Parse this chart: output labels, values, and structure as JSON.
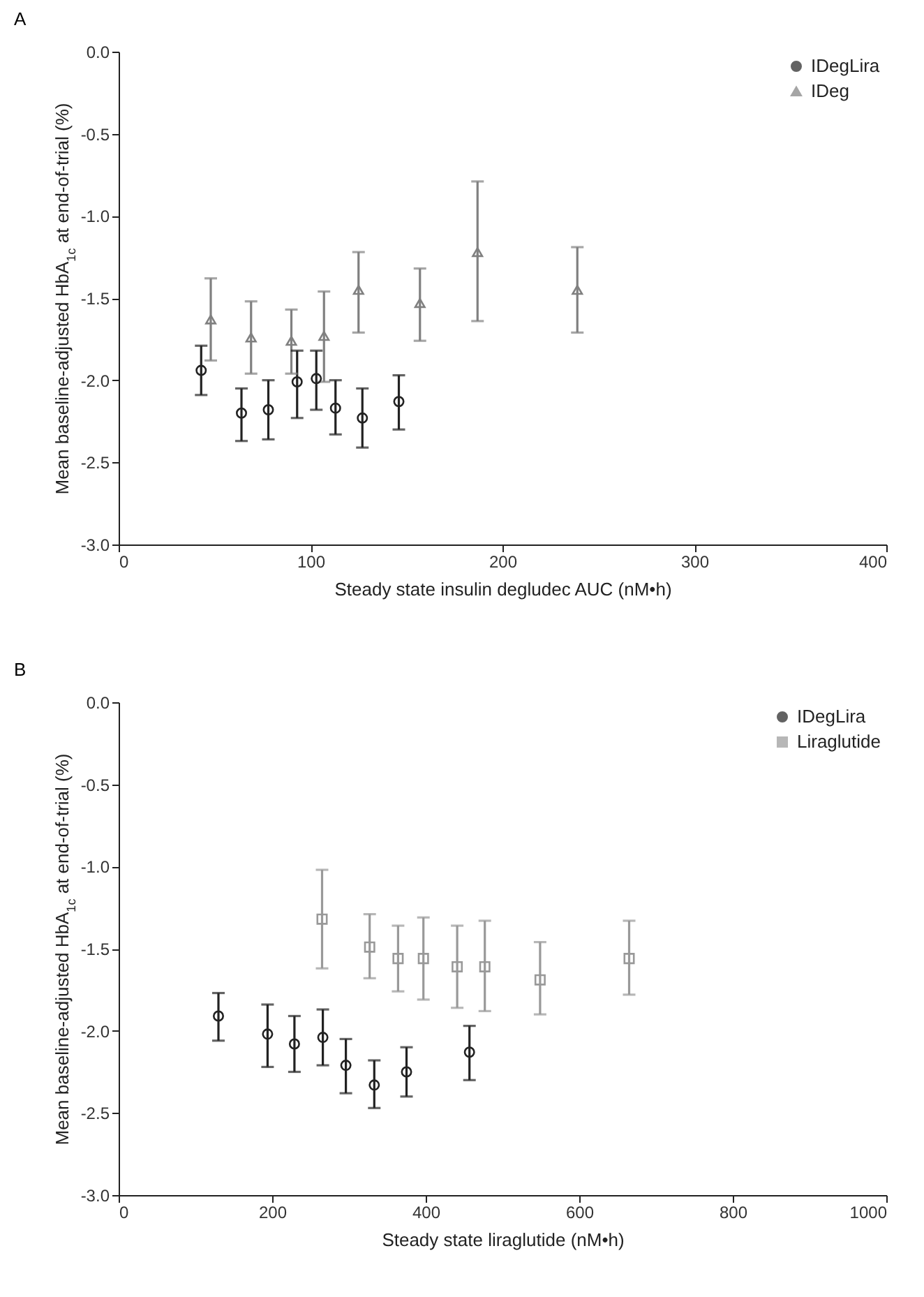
{
  "chart_data": [
    {
      "type": "scatter",
      "title": "A",
      "xlabel": "Steady state insulin degludec AUC (nM•h)",
      "ylabel": "Mean baseline-adjusted HbA$_{1c}$ at end-of-trial (%)",
      "xlim": [
        0,
        400
      ],
      "xticks": [
        0,
        100,
        200,
        300,
        400
      ],
      "ylim": [
        -3,
        0
      ],
      "yticks": [
        {
          "value": -3,
          "label": "-3.0"
        },
        {
          "value": -2.5,
          "label": "-2.5"
        },
        {
          "value": -2,
          "label": "-2.0"
        },
        {
          "value": -1.5,
          "label": "-1.5"
        },
        {
          "value": -1,
          "label": "-1.0"
        },
        {
          "value": -0.5,
          "label": "-0.5"
        },
        {
          "value": 0,
          "label": "0.0"
        }
      ],
      "legend": "top right",
      "series": [
        {
          "name": "IDegLira",
          "color": "#222222",
          "marker": "circle",
          "x": [
            43,
            64,
            78,
            93,
            103,
            113,
            127,
            146
          ],
          "values": [
            -1.94,
            -2.2,
            -2.18,
            -2.01,
            -1.99,
            -2.17,
            -2.23,
            -2.13
          ],
          "errors": [
            [
              -2.09,
              -1.79
            ],
            [
              -2.37,
              -2.05
            ],
            [
              -2.36,
              -2.0
            ],
            [
              -2.23,
              -1.82
            ],
            [
              -2.18,
              -1.82
            ],
            [
              -2.33,
              -2.0
            ],
            [
              -2.41,
              -2.05
            ],
            [
              -2.3,
              -1.97
            ]
          ]
        },
        {
          "name": "IDeg",
          "color": "#808080",
          "marker": "triangle",
          "x": [
            48,
            69,
            90,
            107,
            125,
            157,
            187,
            239
          ],
          "values": [
            -1.63,
            -1.74,
            -1.76,
            -1.73,
            -1.45,
            -1.53,
            -1.22,
            -1.45
          ],
          "errors": [
            [
              -1.88,
              -1.38
            ],
            [
              -1.96,
              -1.52
            ],
            [
              -1.96,
              -1.57
            ],
            [
              -2.01,
              -1.46
            ],
            [
              -1.71,
              -1.22
            ],
            [
              -1.76,
              -1.32
            ],
            [
              -1.64,
              -0.79
            ],
            [
              -1.71,
              -1.19
            ]
          ]
        }
      ]
    },
    {
      "type": "scatter",
      "title": "B",
      "xlabel": "Steady state liraglutide (nM•h)",
      "ylabel": "Mean baseline-adjusted HbA$_{1c}$ at end-of-trial (%)",
      "xlim": [
        0,
        1000
      ],
      "xticks": [
        0,
        200,
        400,
        600,
        800,
        1000
      ],
      "ylim": [
        -3,
        0
      ],
      "yticks": [
        {
          "value": -3,
          "label": "-3.0"
        },
        {
          "value": -2.5,
          "label": "-2.5"
        },
        {
          "value": -2,
          "label": "-2.0"
        },
        {
          "value": -1.5,
          "label": "-1.5"
        },
        {
          "value": -1,
          "label": "-1.0"
        },
        {
          "value": -0.5,
          "label": "-0.5"
        },
        {
          "value": 0,
          "label": "0.0"
        }
      ],
      "legend": "top right",
      "series": [
        {
          "name": "IDegLira",
          "color": "#222222",
          "marker": "circle",
          "x": [
            130,
            194,
            229,
            266,
            296,
            333,
            375,
            457
          ],
          "values": [
            -1.91,
            -2.02,
            -2.08,
            -2.04,
            -2.21,
            -2.33,
            -2.25,
            -2.13
          ],
          "errors": [
            [
              -2.06,
              -1.77
            ],
            [
              -2.22,
              -1.84
            ],
            [
              -2.25,
              -1.91
            ],
            [
              -2.21,
              -1.87
            ],
            [
              -2.38,
              -2.05
            ],
            [
              -2.47,
              -2.18
            ],
            [
              -2.4,
              -2.1
            ],
            [
              -2.3,
              -1.97
            ]
          ]
        },
        {
          "name": "Liraglutide",
          "color": "#999999",
          "marker": "square",
          "x": [
            265,
            327,
            364,
            397,
            441,
            477,
            549,
            665
          ],
          "values": [
            -1.32,
            -1.49,
            -1.56,
            -1.56,
            -1.61,
            -1.61,
            -1.69,
            -1.56
          ],
          "errors": [
            [
              -1.62,
              -1.02
            ],
            [
              -1.68,
              -1.29
            ],
            [
              -1.76,
              -1.36
            ],
            [
              -1.81,
              -1.31
            ],
            [
              -1.86,
              -1.36
            ],
            [
              -1.88,
              -1.33
            ],
            [
              -1.9,
              -1.46
            ],
            [
              -1.78,
              -1.33
            ]
          ]
        }
      ]
    }
  ]
}
